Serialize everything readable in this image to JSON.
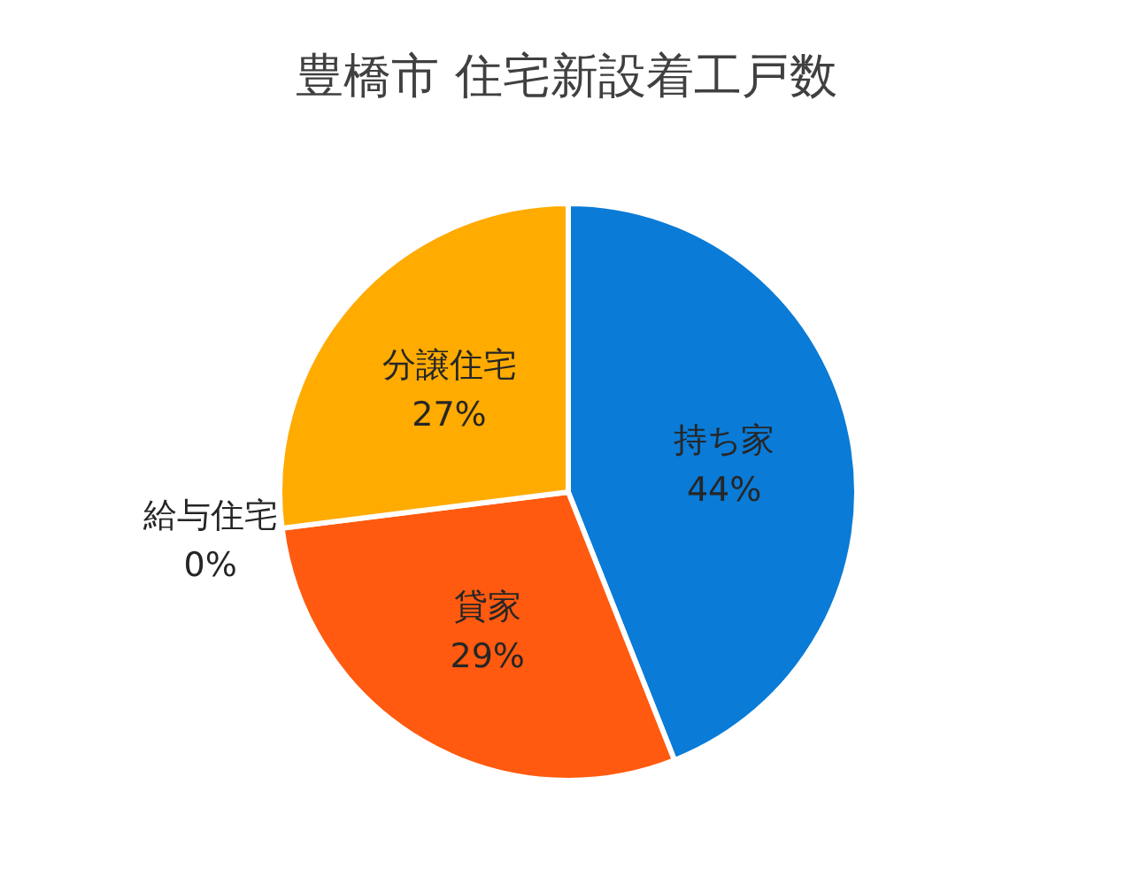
{
  "chart_data": {
    "type": "pie",
    "title": "豊橋市  住宅新設着工戸数",
    "categories": [
      "持ち家",
      "貸家",
      "給与住宅",
      "分譲住宅"
    ],
    "values": [
      44,
      29,
      0,
      27
    ],
    "value_labels": [
      "44%",
      "29%",
      "0%",
      "27%"
    ],
    "colors": [
      "#0a7bd6",
      "#ff5a0f",
      null,
      "#ffab00"
    ]
  }
}
